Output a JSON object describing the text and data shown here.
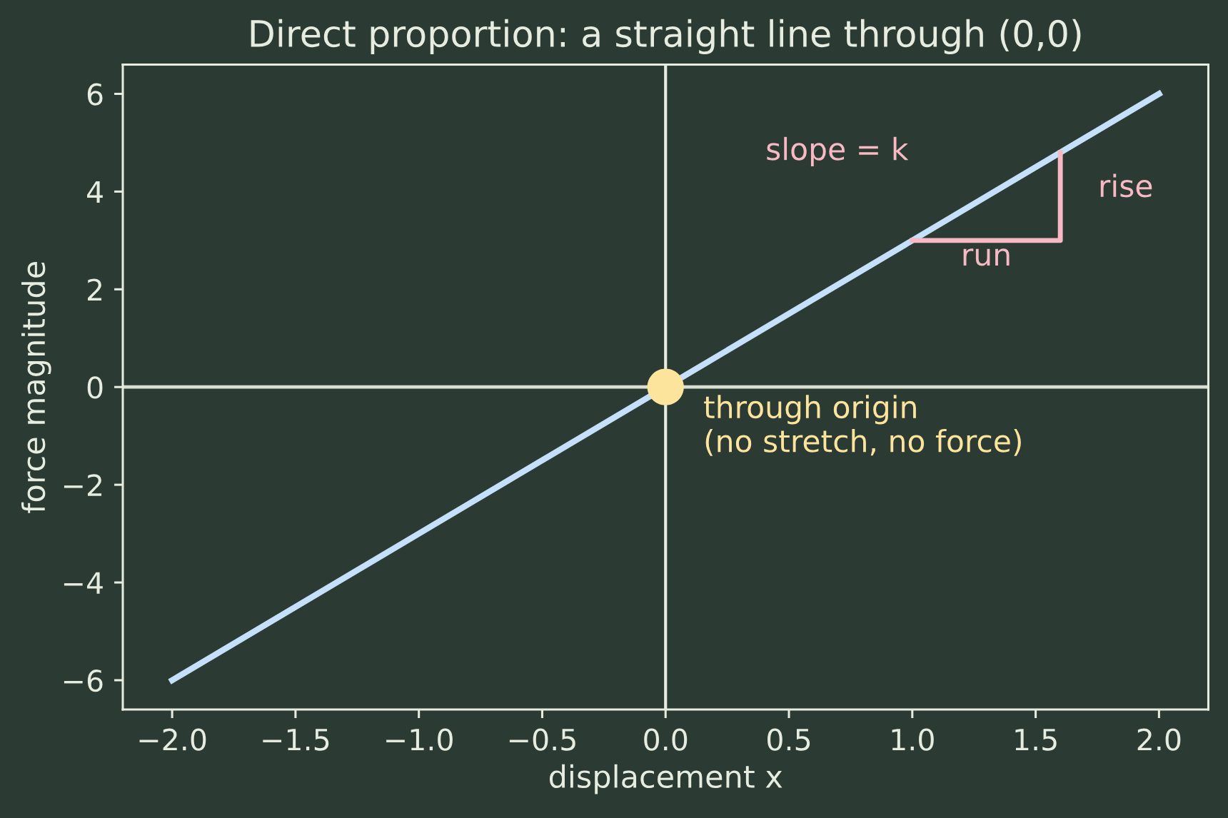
{
  "chart_data": {
    "type": "line",
    "title": "Direct proportion: a straight line through (0,0)",
    "xlabel": "displacement x",
    "ylabel": "force magnitude",
    "series": [
      {
        "color": "#c4e0fb",
        "x": [
          -2.0,
          2.0
        ],
        "values": [
          -6,
          6
        ]
      },
      {
        "color": "#f7bac4",
        "x": [
          1.0,
          1.6,
          1.6
        ],
        "values": [
          3.0,
          3.0,
          4.8
        ]
      },
      {
        "type": "scatter",
        "color": "#fde49c",
        "marker": "circle",
        "x": [
          0
        ],
        "values": [
          0
        ]
      }
    ],
    "ref_lines": [
      {
        "axis": "x",
        "value": 0,
        "color": "#e6ecdf"
      },
      {
        "axis": "y",
        "value": 0,
        "color": "#d9dfd2"
      }
    ],
    "annotations": [
      "slope = k",
      {
        "text": "rise",
        "x": 1.6,
        "y": 3.9
      },
      {
        "text": "run",
        "x": 1.3,
        "y": 3.0
      },
      {
        "text": "through origin\n(no stretch, no force)",
        "x": 0,
        "y": 0
      }
    ],
    "xlim": [
      -2.2,
      2.2
    ],
    "ylim": [
      -6.6,
      6.6
    ],
    "xticks": [
      {
        "value": -2.0,
        "label": "−2.0"
      },
      {
        "value": -1.5,
        "label": "−1.5"
      },
      {
        "value": -1.0,
        "label": "−1.0"
      },
      {
        "value": -0.5,
        "label": "−0.5"
      },
      {
        "value": 0.0,
        "label": "0.0"
      },
      {
        "value": 0.5,
        "label": "0.5"
      },
      {
        "value": 1.0,
        "label": "1.0"
      },
      {
        "value": 1.5,
        "label": "1.5"
      },
      {
        "value": 2.0,
        "label": "2.0"
      }
    ],
    "yticks": [
      {
        "value": -6,
        "label": "−6"
      },
      {
        "value": -4,
        "label": "−4"
      },
      {
        "value": -2,
        "label": "−2"
      },
      0,
      2,
      4,
      6
    ],
    "grid": false
  }
}
